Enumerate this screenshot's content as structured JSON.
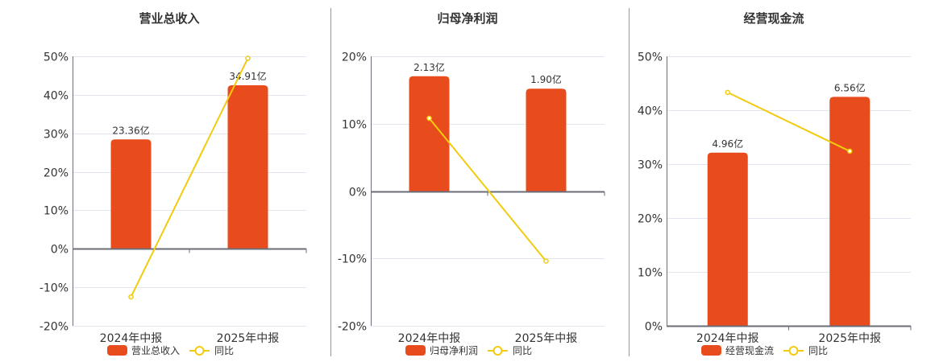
{
  "colors": {
    "bar": "#e84c1c",
    "line": "#f2cb0f",
    "grid": "#e3e6f0",
    "axis": "#6b6e78",
    "divider": "#999999"
  },
  "chart_data": [
    {
      "type": "bar+line",
      "title": "营业总收入",
      "categories": [
        "2024年中报",
        "2025年中报"
      ],
      "bar_series": {
        "name": "营业总收入",
        "values": [
          23.36,
          34.91
        ],
        "unit": "亿",
        "labels": [
          "23.36亿",
          "34.91亿"
        ],
        "axis_top": 41.1
      },
      "line_series": {
        "name": "同比",
        "values": [
          -12.5,
          49.5
        ],
        "unit": "%"
      },
      "yticks": [
        "50%",
        "40%",
        "30%",
        "20%",
        "10%",
        "0%",
        "-10%",
        "-20%"
      ],
      "ylim": [
        -20,
        50
      ],
      "ystep": 10,
      "grid": true,
      "legend": "bottom"
    },
    {
      "type": "bar+line",
      "title": "归母净利润",
      "categories": [
        "2024年中报",
        "2025年中报"
      ],
      "bar_series": {
        "name": "归母净利润",
        "values": [
          2.13,
          1.9
        ],
        "unit": "亿",
        "labels": [
          "2.13亿",
          "1.90亿"
        ],
        "axis_top": 2.5
      },
      "line_series": {
        "name": "同比",
        "values": [
          10.8,
          -10.4
        ],
        "unit": "%"
      },
      "yticks": [
        "20%",
        "10%",
        "0%",
        "-10%",
        "-20%"
      ],
      "ylim": [
        -20,
        20
      ],
      "ystep": 10,
      "grid": true,
      "legend": "bottom"
    },
    {
      "type": "bar+line",
      "title": "经营现金流",
      "categories": [
        "2024年中报",
        "2025年中报"
      ],
      "bar_series": {
        "name": "经营现金流",
        "values": [
          4.96,
          6.56
        ],
        "unit": "亿",
        "labels": [
          "4.96亿",
          "6.56亿"
        ],
        "axis_top": 7.72
      },
      "line_series": {
        "name": "同比",
        "values": [
          43.3,
          32.4
        ],
        "unit": "%"
      },
      "yticks": [
        "50%",
        "40%",
        "30%",
        "20%",
        "10%",
        "0%"
      ],
      "ylim": [
        0,
        50
      ],
      "ystep": 10,
      "grid": true,
      "legend": "bottom"
    }
  ]
}
